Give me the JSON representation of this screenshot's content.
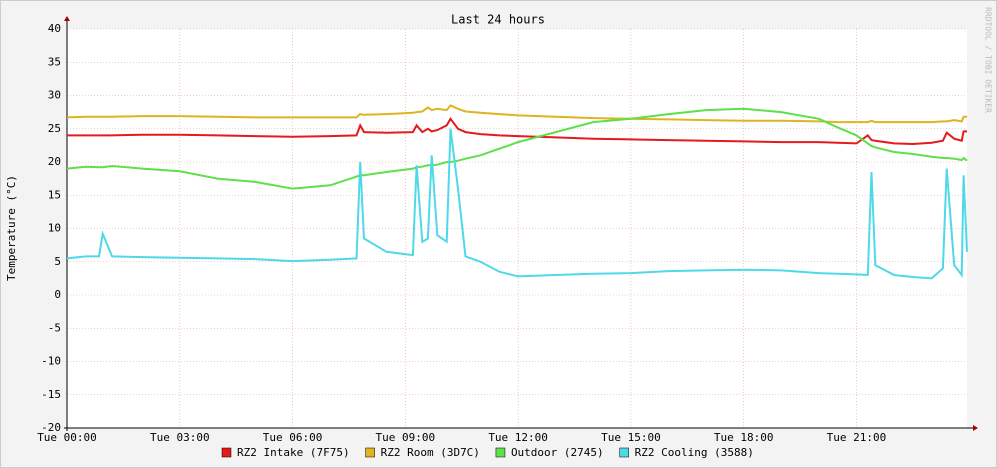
{
  "chart_data": {
    "type": "line",
    "title": "Last 24 hours",
    "y_label": "Temperature (°C)",
    "side_text": "RRDTOOL / TOBI OETIKER",
    "x": [
      0,
      0.5,
      0.85,
      0.95,
      1.2,
      2,
      3,
      4,
      5,
      6,
      7,
      7.7,
      7.8,
      7.9,
      8.5,
      9.2,
      9.3,
      9.45,
      9.6,
      9.7,
      9.85,
      10.1,
      10.2,
      10.4,
      10.6,
      11,
      11.5,
      12,
      13,
      14,
      15,
      16,
      17,
      18,
      19,
      20,
      20.5,
      21,
      21.3,
      21.4,
      21.5,
      22,
      22.5,
      23,
      23.3,
      23.4,
      23.6,
      23.8,
      23.85,
      23.94
    ],
    "xlim": [
      0,
      23.94
    ],
    "xticks": [
      {
        "value": 0,
        "label": "Tue 00:00"
      },
      {
        "value": 3,
        "label": "Tue 03:00"
      },
      {
        "value": 6,
        "label": "Tue 06:00"
      },
      {
        "value": 9,
        "label": "Tue 09:00"
      },
      {
        "value": 12,
        "label": "Tue 12:00"
      },
      {
        "value": 15,
        "label": "Tue 15:00"
      },
      {
        "value": 18,
        "label": "Tue 18:00"
      },
      {
        "value": 21,
        "label": "Tue 21:00"
      }
    ],
    "ylim": [
      -20,
      40
    ],
    "yticks": [
      -20,
      -15,
      -10,
      -5,
      0,
      5,
      10,
      15,
      20,
      25,
      30,
      35,
      40
    ],
    "grid": true,
    "series": [
      {
        "name": "RZ2 Intake (7F75)",
        "color": "#e41a1c",
        "values": [
          24,
          24,
          24,
          24,
          24,
          24.1,
          24.1,
          24,
          23.9,
          23.8,
          23.9,
          24,
          25.5,
          24.5,
          24.4,
          24.5,
          25.5,
          24.5,
          25,
          24.6,
          24.8,
          25.5,
          26.5,
          25,
          24.5,
          24.2,
          24,
          23.9,
          23.7,
          23.5,
          23.4,
          23.3,
          23.2,
          23.1,
          23,
          23,
          22.9,
          22.8,
          24,
          23.3,
          23.2,
          22.8,
          22.7,
          22.9,
          23.2,
          24.4,
          23.5,
          23.2,
          24.6,
          24.6
        ]
      },
      {
        "name": "RZ2 Room (3D7C)",
        "color": "#e0b41e",
        "values": [
          26.7,
          26.8,
          26.8,
          26.8,
          26.8,
          26.9,
          26.9,
          26.8,
          26.7,
          26.7,
          26.7,
          26.7,
          27.2,
          27.1,
          27.2,
          27.4,
          27.5,
          27.6,
          28.2,
          27.8,
          28,
          27.8,
          28.5,
          28,
          27.6,
          27.4,
          27.2,
          27,
          26.8,
          26.6,
          26.5,
          26.4,
          26.3,
          26.2,
          26.2,
          26.1,
          26,
          26,
          26,
          26.2,
          26,
          26,
          26,
          26,
          26.1,
          26.1,
          26.3,
          26.1,
          26.8,
          26.8
        ]
      },
      {
        "name": "Outdoor (2745)",
        "color": "#5ee04a",
        "values": [
          19,
          19.3,
          19.2,
          19.2,
          19.4,
          19,
          18.6,
          17.5,
          17,
          16,
          16.5,
          17.8,
          18,
          18,
          18.5,
          19,
          19.2,
          19.3,
          19.5,
          19.5,
          19.6,
          20,
          20,
          20.2,
          20.5,
          21,
          22,
          23,
          24.5,
          26,
          26.5,
          27.2,
          27.8,
          28,
          27.5,
          26.5,
          25.2,
          24,
          22.8,
          22.4,
          22.2,
          21.5,
          21.2,
          20.8,
          20.6,
          20.6,
          20.5,
          20.3,
          20.6,
          20.2
        ]
      },
      {
        "name": "RZ2 Cooling (3588)",
        "color": "#4fd8e8",
        "values": [
          5.5,
          5.8,
          5.8,
          9.2,
          5.8,
          5.7,
          5.6,
          5.5,
          5.4,
          5.1,
          5.3,
          5.5,
          20,
          8.5,
          6.5,
          6,
          19.5,
          8,
          8.5,
          21,
          9,
          8,
          25,
          16,
          5.8,
          5,
          3.5,
          2.8,
          3,
          3.2,
          3.3,
          3.6,
          3.7,
          3.8,
          3.7,
          3.3,
          3.2,
          3.1,
          3,
          18.5,
          4.5,
          3,
          2.7,
          2.5,
          4,
          19,
          4.5,
          3,
          18,
          6.5
        ]
      }
    ]
  }
}
